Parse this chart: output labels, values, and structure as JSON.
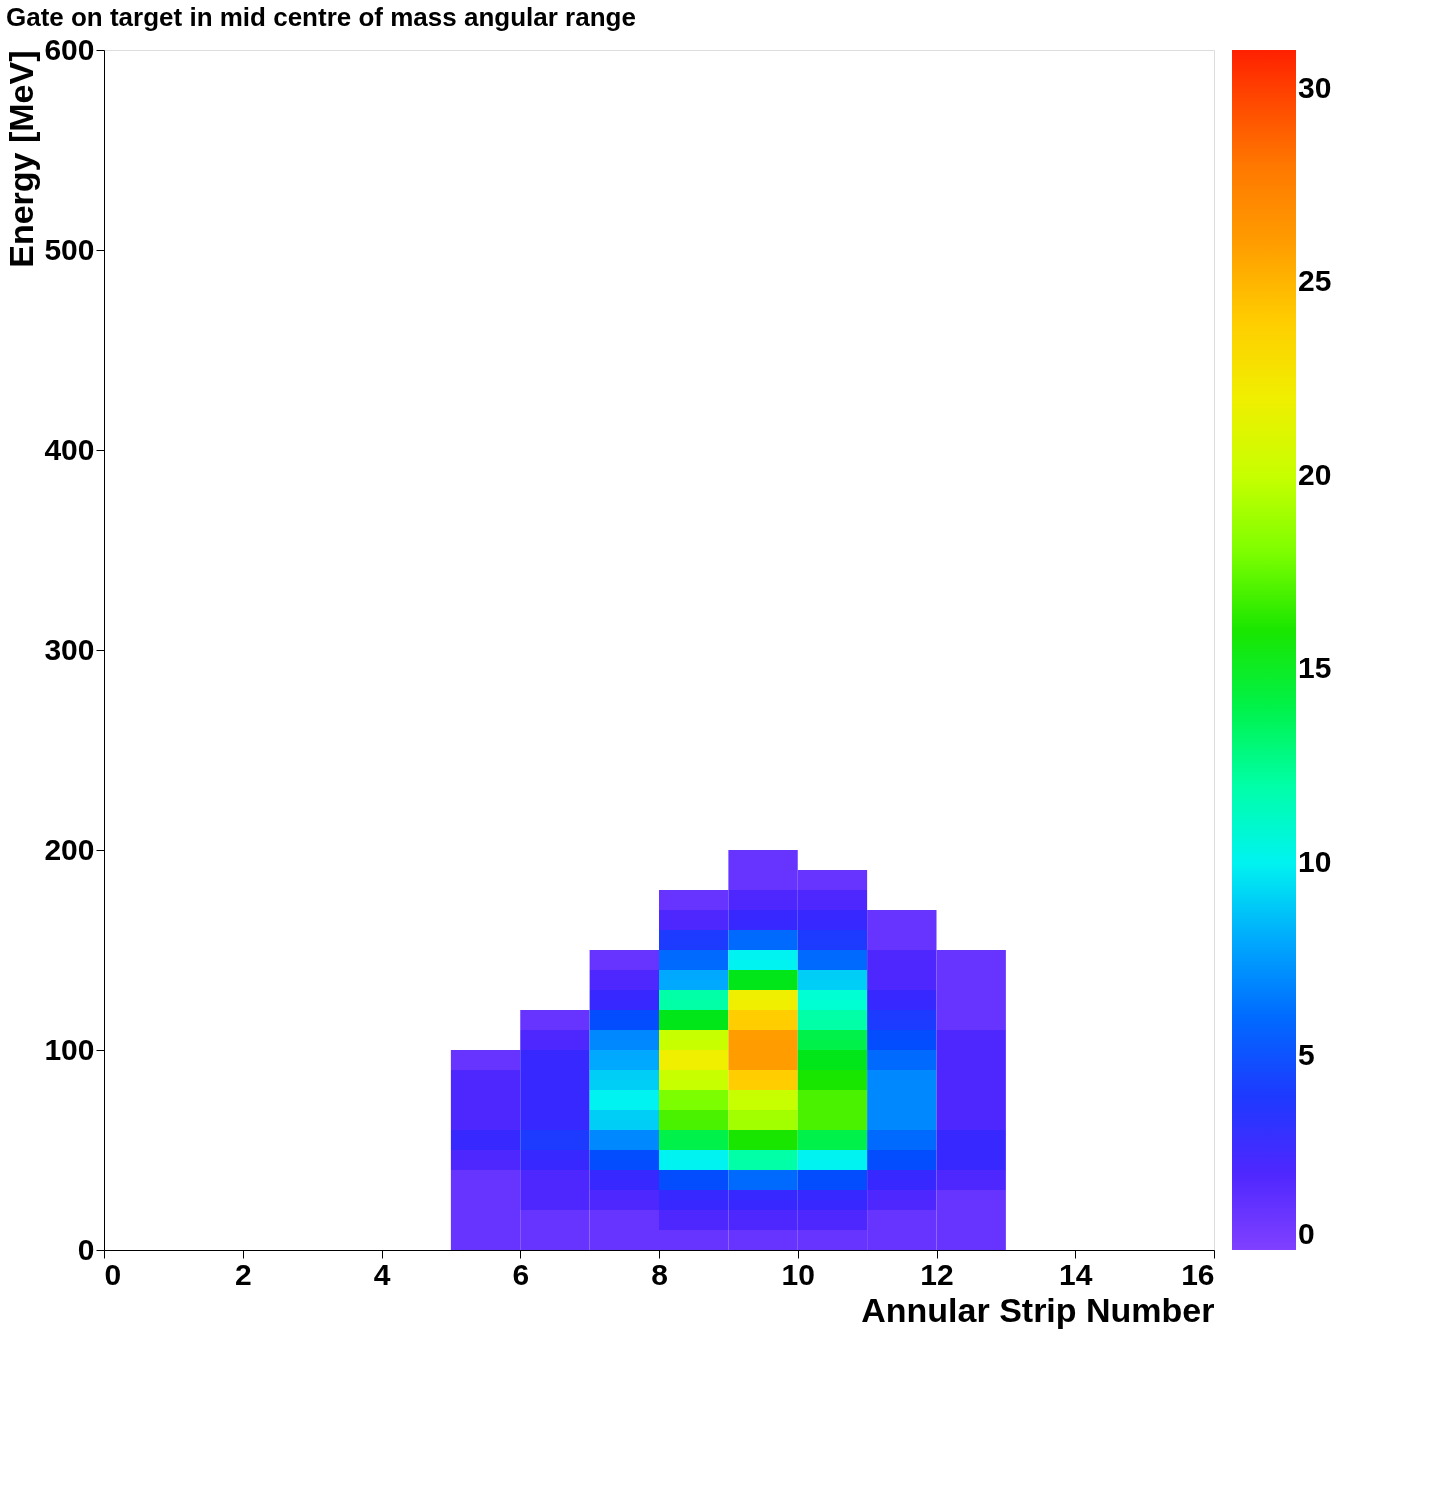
{
  "chart_data": {
    "type": "heatmap",
    "title": "Gate on target in mid centre of mass angular range",
    "xlabel": "Annular Strip Number",
    "ylabel": "Energy [MeV]",
    "x": [
      5.5,
      6.5,
      7.5,
      8.5,
      9.5,
      10.5,
      11.5,
      12.5
    ],
    "y": [
      195,
      185,
      175,
      165,
      155,
      145,
      135,
      125,
      115,
      105,
      95,
      85,
      75,
      65,
      55,
      45,
      35,
      25,
      15,
      5
    ],
    "cells": [
      [
        null,
        null,
        null,
        null,
        1,
        null,
        null,
        null
      ],
      [
        null,
        null,
        null,
        null,
        1,
        1,
        null,
        null
      ],
      [
        null,
        null,
        null,
        1,
        2,
        2,
        null,
        null
      ],
      [
        null,
        null,
        null,
        2,
        3,
        3,
        1,
        null
      ],
      [
        null,
        null,
        null,
        4,
        6,
        4,
        1,
        null
      ],
      [
        null,
        null,
        1,
        6,
        10,
        6,
        2,
        1
      ],
      [
        null,
        null,
        2,
        8,
        15,
        9,
        2,
        1
      ],
      [
        null,
        null,
        3,
        12,
        22,
        11,
        3,
        1
      ],
      [
        null,
        1,
        5,
        15,
        24,
        12,
        4,
        1
      ],
      [
        null,
        2,
        7,
        20,
        26,
        14,
        5,
        2
      ],
      [
        1,
        3,
        8,
        22,
        26,
        15,
        6,
        2
      ],
      [
        2,
        3,
        9,
        20,
        24,
        16,
        7,
        2
      ],
      [
        2,
        3,
        10,
        18,
        20,
        17,
        7,
        2
      ],
      [
        2,
        3,
        9,
        17,
        19,
        17,
        7,
        2
      ],
      [
        3,
        4,
        7,
        14,
        16,
        14,
        6,
        3
      ],
      [
        2,
        3,
        5,
        10,
        12,
        10,
        5,
        3
      ],
      [
        1,
        2,
        3,
        5,
        6,
        5,
        3,
        2
      ],
      [
        1,
        2,
        2,
        3,
        3,
        3,
        2,
        1
      ],
      [
        1,
        1,
        1,
        2,
        2,
        2,
        1,
        1
      ],
      [
        1,
        1,
        1,
        1,
        1,
        1,
        1,
        1
      ]
    ],
    "colors": [
      "#8040ff",
      "#4020ff",
      "#0050ff",
      "#00a0ff",
      "#00ffee",
      "#00ff80",
      "#00e000",
      "#80ff00",
      "#e0ff00",
      "#ffe000",
      "#ffa000",
      "#ff7000",
      "#ff2000"
    ],
    "xlim": [
      0,
      16
    ],
    "xticks": [
      0,
      2,
      4,
      6,
      8,
      10,
      12,
      14,
      16
    ],
    "ylim": [
      0,
      600
    ],
    "yticks": [
      0,
      100,
      200,
      300,
      400,
      500,
      600
    ],
    "clim": [
      0,
      31
    ],
    "cticks": [
      0,
      5,
      10,
      15,
      20,
      25,
      30
    ],
    "grid": false
  }
}
